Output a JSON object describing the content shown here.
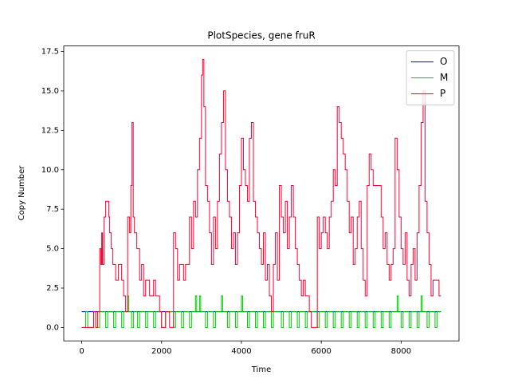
{
  "chart_data": {
    "type": "step",
    "title": "PlotSpecies, gene fruR",
    "xlabel": "Time",
    "ylabel": "Copy Number",
    "xlim": [
      -450,
      9450
    ],
    "ylim": [
      -0.85,
      17.85
    ],
    "xticks": [
      0,
      2000,
      4000,
      6000,
      8000
    ],
    "yticks": [
      {
        "value": 0,
        "label": "0.0"
      },
      {
        "value": 2.5,
        "label": "2.5"
      },
      {
        "value": 5,
        "label": "5.0"
      },
      {
        "value": 7.5,
        "label": "7.5"
      },
      {
        "value": 10,
        "label": "10.0"
      },
      {
        "value": 12.5,
        "label": "12.5"
      },
      {
        "value": 15,
        "label": "15.0"
      },
      {
        "value": 17.5,
        "label": "17.5"
      }
    ],
    "legend": "upper right",
    "series": [
      {
        "name": "O",
        "color": "#0000ff",
        "x": [
          0,
          9000
        ],
        "values": [
          1,
          1
        ]
      },
      {
        "name": "M",
        "color": "#00cc00",
        "x": [
          0,
          100,
          150,
          300,
          350,
          450,
          600,
          650,
          800,
          850,
          1000,
          1050,
          1150,
          1180,
          1250,
          1300,
          1400,
          1450,
          1600,
          1650,
          1800,
          1850,
          2000,
          2100,
          2300,
          2350,
          2500,
          2550,
          2700,
          2750,
          2850,
          2880,
          2950,
          2980,
          3100,
          3150,
          3300,
          3350,
          3500,
          3530,
          3650,
          3700,
          3850,
          3900,
          4000,
          4030,
          4150,
          4200,
          4350,
          4400,
          4550,
          4600,
          4750,
          4800,
          5000,
          5050,
          5200,
          5250,
          5400,
          5450,
          5600,
          5650,
          5900,
          5950,
          6100,
          6150,
          6300,
          6350,
          6500,
          6550,
          6700,
          6750,
          6900,
          6950,
          7100,
          7150,
          7300,
          7350,
          7500,
          7550,
          7700,
          7750,
          7900,
          7930,
          8000,
          8050,
          8200,
          8250,
          8400,
          8450,
          8500,
          8530,
          8650,
          8700,
          8850,
          8900,
          9000
        ],
        "values": [
          0,
          1,
          0,
          1,
          0,
          1,
          0,
          1,
          0,
          1,
          0,
          1,
          2,
          1,
          0,
          1,
          0,
          1,
          0,
          1,
          0,
          1,
          0,
          1,
          0,
          1,
          0,
          1,
          0,
          1,
          2,
          1,
          2,
          1,
          0,
          1,
          0,
          1,
          2,
          1,
          0,
          1,
          0,
          1,
          2,
          1,
          0,
          1,
          0,
          1,
          0,
          1,
          0,
          1,
          0,
          1,
          0,
          1,
          0,
          1,
          0,
          1,
          0,
          1,
          0,
          1,
          0,
          1,
          0,
          1,
          0,
          1,
          0,
          1,
          0,
          1,
          0,
          1,
          0,
          1,
          0,
          1,
          2,
          1,
          0,
          1,
          0,
          1,
          0,
          1,
          2,
          1,
          0,
          1,
          0,
          1,
          1
        ]
      },
      {
        "name": "P",
        "color": "#ff0033",
        "x": [
          0,
          300,
          350,
          400,
          450,
          480,
          500,
          520,
          560,
          600,
          680,
          700,
          740,
          780,
          850,
          920,
          1000,
          1050,
          1100,
          1150,
          1200,
          1230,
          1260,
          1290,
          1320,
          1380,
          1450,
          1500,
          1550,
          1600,
          1700,
          1800,
          1850,
          1950,
          2000,
          2100,
          2200,
          2300,
          2350,
          2400,
          2450,
          2550,
          2600,
          2700,
          2750,
          2800,
          2850,
          2900,
          2950,
          3000,
          3030,
          3060,
          3100,
          3150,
          3200,
          3250,
          3300,
          3350,
          3400,
          3450,
          3500,
          3550,
          3600,
          3650,
          3700,
          3750,
          3800,
          3850,
          3900,
          3950,
          4000,
          4050,
          4100,
          4150,
          4200,
          4250,
          4300,
          4350,
          4400,
          4450,
          4500,
          4550,
          4600,
          4650,
          4700,
          4750,
          4800,
          4850,
          4900,
          4950,
          5000,
          5050,
          5100,
          5150,
          5200,
          5250,
          5300,
          5350,
          5400,
          5450,
          5500,
          5550,
          5600,
          5700,
          5750,
          5900,
          5950,
          6000,
          6050,
          6100,
          6150,
          6200,
          6250,
          6300,
          6350,
          6400,
          6450,
          6500,
          6550,
          6600,
          6650,
          6700,
          6750,
          6800,
          6850,
          6900,
          6950,
          7000,
          7050,
          7100,
          7150,
          7200,
          7250,
          7300,
          7400,
          7500,
          7550,
          7600,
          7650,
          7700,
          7750,
          7800,
          7850,
          7900,
          7950,
          8000,
          8050,
          8100,
          8150,
          8200,
          8250,
          8300,
          8350,
          8400,
          8450,
          8500,
          8550,
          8600,
          8650,
          8700,
          8750,
          8800,
          8900,
          8950,
          9000
        ],
        "values": [
          0,
          1,
          0,
          1,
          5,
          4,
          6,
          4,
          7,
          8,
          7,
          6,
          5,
          4,
          3,
          4,
          3,
          2,
          1,
          7,
          6,
          9,
          13,
          7,
          6,
          5,
          3,
          4,
          2,
          3,
          2,
          3,
          2,
          1,
          0,
          1,
          0,
          6,
          5,
          3,
          4,
          3,
          4,
          7,
          5,
          8,
          7,
          10,
          12,
          16,
          17,
          14,
          9,
          8,
          6,
          4,
          7,
          5,
          8,
          11,
          13,
          15,
          10,
          8,
          7,
          5,
          6,
          4,
          6,
          9,
          12,
          10,
          9,
          8,
          12,
          13,
          8,
          7,
          6,
          5,
          4,
          6,
          3,
          4,
          2,
          1,
          4,
          6,
          3,
          9,
          7,
          6,
          8,
          5,
          7,
          9,
          7,
          5,
          4,
          3,
          2,
          3,
          2,
          1,
          0,
          7,
          5,
          6,
          7,
          6,
          5,
          7,
          8,
          10,
          9,
          14,
          13,
          12,
          11,
          10,
          8,
          6,
          7,
          4,
          5,
          7,
          8,
          5,
          3,
          2,
          9,
          11,
          10,
          9,
          9,
          7,
          5,
          6,
          4,
          3,
          4,
          5,
          12,
          10,
          7,
          5,
          4,
          6,
          3,
          2,
          4,
          5,
          3,
          6,
          9,
          13,
          15,
          8,
          6,
          4,
          2,
          3,
          3,
          2,
          2
        ]
      }
    ]
  }
}
